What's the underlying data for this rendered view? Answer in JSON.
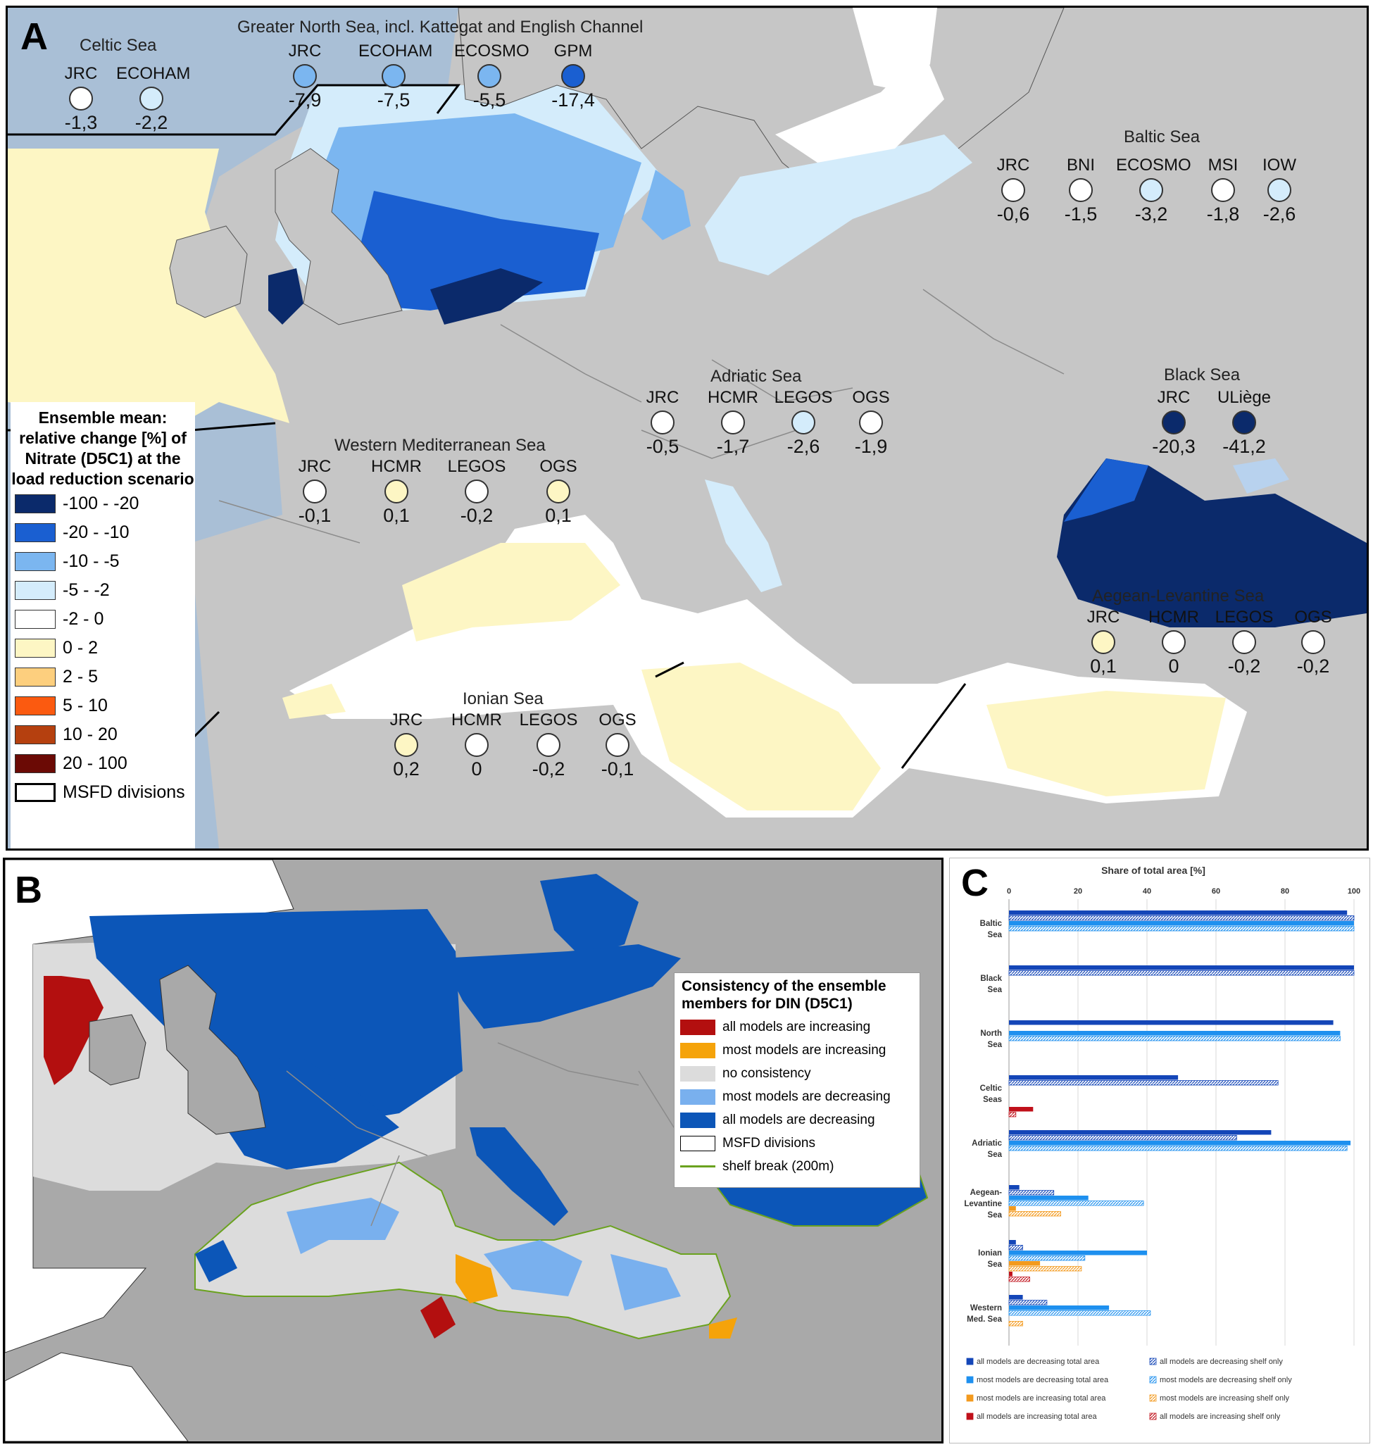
{
  "panel_a": {
    "letter": "A",
    "regions": [
      {
        "title": "Celtic Sea",
        "models": [
          {
            "name": "JRC",
            "value": "-1,3",
            "color": "#ffffff"
          },
          {
            "name": "ECOHAM",
            "value": "-2,2",
            "color": "#d4ecfb"
          }
        ]
      },
      {
        "title": "Greater North Sea, incl. Kattegat and English Channel",
        "models": [
          {
            "name": "JRC",
            "value": "-7,9",
            "color": "#7bb6f0"
          },
          {
            "name": "ECOHAM",
            "value": "-7,5",
            "color": "#7bb6f0"
          },
          {
            "name": "ECOSMO",
            "value": "-5,5",
            "color": "#7bb6f0"
          },
          {
            "name": "GPM",
            "value": "-17,4",
            "color": "#1a5fd1"
          }
        ]
      },
      {
        "title": "Baltic Sea",
        "models": [
          {
            "name": "JRC",
            "value": "-0,6",
            "color": "#ffffff"
          },
          {
            "name": "BNI",
            "value": "-1,5",
            "color": "#ffffff"
          },
          {
            "name": "ECOSMO",
            "value": "-3,2",
            "color": "#d4ecfb"
          },
          {
            "name": "MSI",
            "value": "-1,8",
            "color": "#ffffff"
          },
          {
            "name": "IOW",
            "value": "-2,6",
            "color": "#d4ecfb"
          }
        ]
      },
      {
        "title": "Adriatic Sea",
        "models": [
          {
            "name": "JRC",
            "value": "-0,5",
            "color": "#ffffff"
          },
          {
            "name": "HCMR",
            "value": "-1,7",
            "color": "#ffffff"
          },
          {
            "name": "LEGOS",
            "value": "-2,6",
            "color": "#d4ecfb"
          },
          {
            "name": "OGS",
            "value": "-1,9",
            "color": "#ffffff"
          }
        ]
      },
      {
        "title": "Black Sea",
        "models": [
          {
            "name": "JRC",
            "value": "-20,3",
            "color": "#0b2a6b"
          },
          {
            "name": "ULiège",
            "value": "-41,2",
            "color": "#0b2a6b"
          }
        ]
      },
      {
        "title": "Western Mediterranean Sea",
        "models": [
          {
            "name": "JRC",
            "value": "-0,1",
            "color": "#ffffff"
          },
          {
            "name": "HCMR",
            "value": "0,1",
            "color": "#fdf6c4"
          },
          {
            "name": "LEGOS",
            "value": "-0,2",
            "color": "#ffffff"
          },
          {
            "name": "OGS",
            "value": "0,1",
            "color": "#fdf6c4"
          }
        ]
      },
      {
        "title": "Aegean-Levantine Sea",
        "models": [
          {
            "name": "JRC",
            "value": "0,1",
            "color": "#fdf6c4"
          },
          {
            "name": "HCMR",
            "value": "0",
            "color": "#ffffff"
          },
          {
            "name": "LEGOS",
            "value": "-0,2",
            "color": "#ffffff"
          },
          {
            "name": "OGS",
            "value": "-0,2",
            "color": "#ffffff"
          }
        ]
      },
      {
        "title": "Ionian Sea",
        "models": [
          {
            "name": "JRC",
            "value": "0,2",
            "color": "#fdf6c4"
          },
          {
            "name": "HCMR",
            "value": "0",
            "color": "#ffffff"
          },
          {
            "name": "LEGOS",
            "value": "-0,2",
            "color": "#ffffff"
          },
          {
            "name": "OGS",
            "value": "-0,1",
            "color": "#ffffff"
          }
        ]
      }
    ],
    "legend": {
      "title": "Ensemble mean: relative change [%] of Nitrate (D5C1) at the load reduction scenario",
      "items": [
        {
          "label": "-100 - -20",
          "color": "#0b2a6b"
        },
        {
          "label": "-20 - -10",
          "color": "#1a5fd1"
        },
        {
          "label": "-10 - -5",
          "color": "#7bb6f0"
        },
        {
          "label": "-5 - -2",
          "color": "#d4ecfb"
        },
        {
          "label": "-2 - 0",
          "color": "#ffffff"
        },
        {
          "label": "0 - 2",
          "color": "#fdf6c4"
        },
        {
          "label": "2 - 5",
          "color": "#fdcf7e"
        },
        {
          "label": "5 - 10",
          "color": "#fb5a10"
        },
        {
          "label": "10 - 20",
          "color": "#b5400f"
        },
        {
          "label": "20 - 100",
          "color": "#6b0a05"
        },
        {
          "label": "MSFD divisions",
          "color": "#ffffff"
        }
      ]
    }
  },
  "panel_b": {
    "letter": "B",
    "legend": {
      "title": "Consistency of the ensemble members for DIN (D5C1)",
      "items": [
        {
          "label": "all models are increasing",
          "color": "#b30f0f"
        },
        {
          "label": "most models are increasing",
          "color": "#f5a30a"
        },
        {
          "label": "no consistency",
          "color": "#dcdcdc"
        },
        {
          "label": "most models are decreasing",
          "color": "#79b0ee"
        },
        {
          "label": "all models are decreasing",
          "color": "#0c56b8"
        },
        {
          "label": "MSFD divisions",
          "color": "#ffffff"
        },
        {
          "label": "shelf break (200m)",
          "color": "#6aa21e"
        }
      ]
    }
  },
  "panel_c": {
    "letter": "C",
    "chart_data": {
      "type": "bar",
      "orientation": "horizontal",
      "title": "Share of total area [%]",
      "xlim": [
        0,
        100
      ],
      "x_ticks": [
        0,
        20,
        40,
        60,
        80,
        100
      ],
      "grid": true,
      "legend_position": "bottom",
      "categories": [
        "Baltic Sea",
        "Black Sea",
        "North Sea",
        "Celtic Seas",
        "Adriatic Sea",
        "Aegean-Levantine Sea",
        "Ionian Sea",
        "Western Med. Sea"
      ],
      "series": [
        {
          "name": "all models are decreasing total area",
          "color": "#1446b8",
          "pattern": "solid",
          "values": [
            98,
            100,
            94,
            49,
            76,
            3,
            2,
            4
          ]
        },
        {
          "name": "all models are decreasing shelf only",
          "color": "#1446b8",
          "pattern": "hatched",
          "values": [
            100,
            100,
            0,
            78,
            66,
            13,
            4,
            11
          ]
        },
        {
          "name": "most models are decreasing total area",
          "color": "#1e90ef",
          "pattern": "solid",
          "values": [
            100,
            0,
            96,
            0,
            99,
            23,
            40,
            29
          ]
        },
        {
          "name": "most models are decreasing shelf only",
          "color": "#1e90ef",
          "pattern": "hatched",
          "values": [
            100,
            0,
            96,
            0,
            98,
            39,
            22,
            41
          ]
        },
        {
          "name": "most models are increasing total area",
          "color": "#f39a1e",
          "pattern": "solid",
          "values": [
            0,
            0,
            0,
            0,
            0,
            2,
            9,
            0
          ]
        },
        {
          "name": "most models are increasing shelf only",
          "color": "#f39a1e",
          "pattern": "hatched",
          "values": [
            0,
            0,
            0,
            0,
            0,
            15,
            21,
            4
          ]
        },
        {
          "name": "all models are increasing total area",
          "color": "#c0101a",
          "pattern": "solid",
          "values": [
            0,
            0,
            0,
            7,
            0,
            0,
            1,
            0
          ]
        },
        {
          "name": "all models are increasing shelf only",
          "color": "#c0101a",
          "pattern": "hatched",
          "values": [
            0,
            0,
            0,
            2,
            0,
            0,
            6,
            0
          ]
        }
      ]
    }
  }
}
